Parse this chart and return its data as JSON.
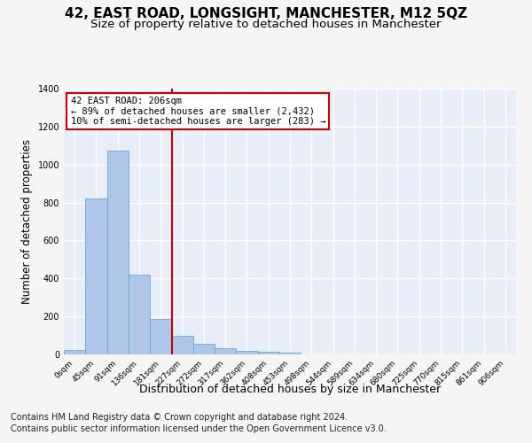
{
  "title": "42, EAST ROAD, LONGSIGHT, MANCHESTER, M12 5QZ",
  "subtitle": "Size of property relative to detached houses in Manchester",
  "xlabel": "Distribution of detached houses by size in Manchester",
  "ylabel": "Number of detached properties",
  "footnote1": "Contains HM Land Registry data © Crown copyright and database right 2024.",
  "footnote2": "Contains public sector information licensed under the Open Government Licence v3.0.",
  "bar_categories": [
    "0sqm",
    "45sqm",
    "91sqm",
    "136sqm",
    "181sqm",
    "227sqm",
    "272sqm",
    "317sqm",
    "362sqm",
    "408sqm",
    "453sqm",
    "498sqm",
    "544sqm",
    "589sqm",
    "634sqm",
    "680sqm",
    "725sqm",
    "770sqm",
    "815sqm",
    "861sqm",
    "906sqm"
  ],
  "bar_values": [
    25,
    820,
    1075,
    420,
    185,
    100,
    55,
    35,
    20,
    15,
    10,
    0,
    0,
    0,
    0,
    0,
    0,
    0,
    0,
    0,
    0
  ],
  "bar_color": "#aec6e8",
  "bar_edge_color": "#5a9fd4",
  "vline_x": 4.54,
  "vline_color": "#cc0000",
  "annotation_text": "42 EAST ROAD: 206sqm\n← 89% of detached houses are smaller (2,432)\n10% of semi-detached houses are larger (283) →",
  "annotation_box_color": "#ffffff",
  "annotation_box_edge": "#cc0000",
  "ylim": [
    0,
    1400
  ],
  "yticks": [
    0,
    200,
    400,
    600,
    800,
    1000,
    1200,
    1400
  ],
  "background_color": "#e8eef8",
  "grid_color": "#ffffff",
  "title_fontsize": 11,
  "subtitle_fontsize": 9.5,
  "footnote_fontsize": 7,
  "ylabel_fontsize": 8.5,
  "xlabel_fontsize": 9,
  "tick_fontsize": 6.5,
  "annot_fontsize": 7.5
}
